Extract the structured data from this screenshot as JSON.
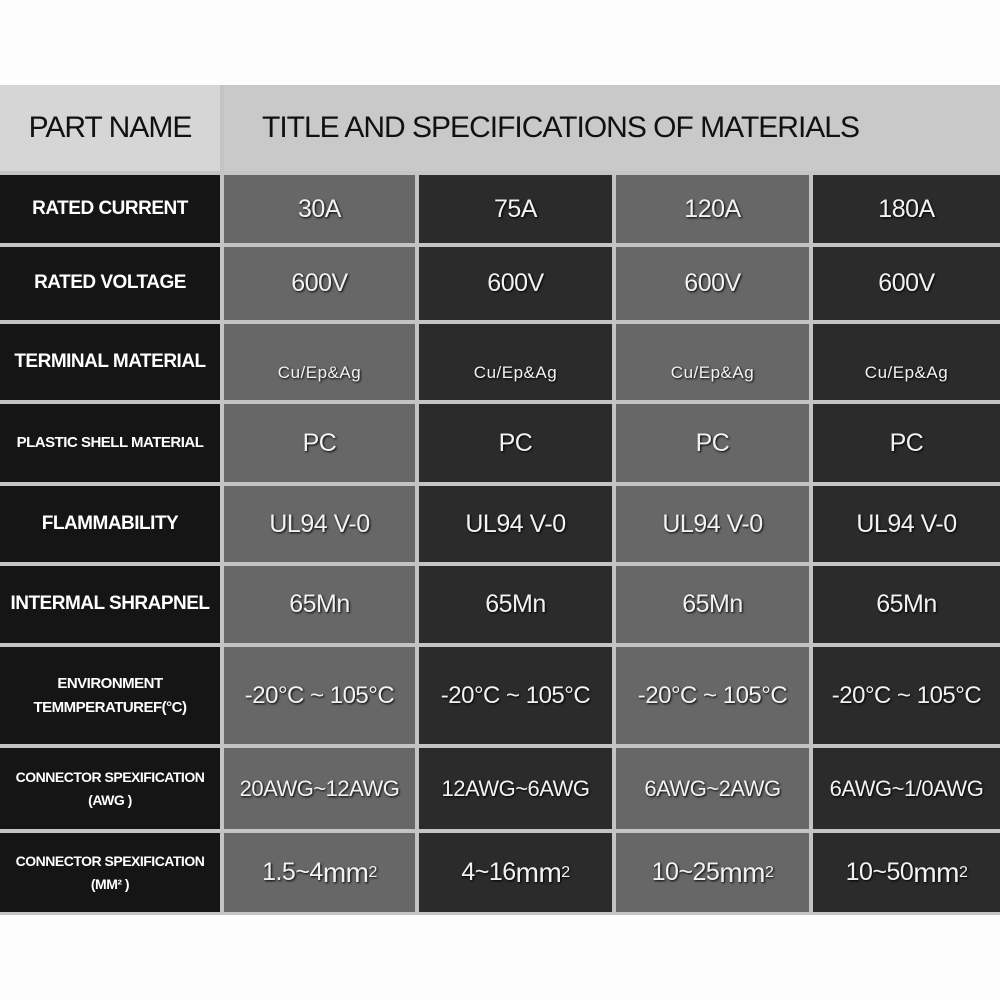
{
  "header": {
    "part_name": "PART NAME",
    "title": "TITLE AND SPECIFICATIONS OF MATERIALS"
  },
  "colors": {
    "label_bg": "#151515",
    "light_col": "#676767",
    "dark_col": "#2b2b2b",
    "header_bg": "#c9c9c9",
    "grid_line": "#c4c4c4"
  },
  "rows": [
    {
      "label": "RATED CURRENT",
      "values": [
        "30A",
        "75A",
        "120A",
        "180A"
      ]
    },
    {
      "label": "RATED VOLTAGE",
      "values": [
        "600V",
        "600V",
        "600V",
        "600V"
      ]
    },
    {
      "label": "TERMINAL MATERIAL",
      "values": [
        "Cu/Ep&Ag",
        "Cu/Ep&Ag",
        "Cu/Ep&Ag",
        "Cu/Ep&Ag"
      ]
    },
    {
      "label": "PLASTIC SHELL MATERIAL",
      "values": [
        "PC",
        "PC",
        "PC",
        "PC"
      ]
    },
    {
      "label": "FLAMMABILITY",
      "values": [
        "UL94 V-0",
        "UL94 V-0",
        "UL94 V-0",
        "UL94 V-0"
      ]
    },
    {
      "label": "INTERMAL SHRAPNEL",
      "values": [
        "65Mn",
        "65Mn",
        "65Mn",
        "65Mn"
      ]
    },
    {
      "label": "ENVIRONMENT",
      "label2": "TEMMPERATUREF(°C)",
      "values": [
        "-20°C ~ 105°C",
        "-20°C ~ 105°C",
        "-20°C ~ 105°C",
        "-20°C ~ 105°C"
      ]
    },
    {
      "label": "CONNECTOR SPEXIFICATION",
      "label2": "(AWG )",
      "values": [
        "20AWG~12AWG",
        "12AWG~6AWG",
        "6AWG~2AWG",
        "6AWG~1/0AWG"
      ]
    },
    {
      "label": "CONNECTOR SPEXIFICATION",
      "label2": "(MM² )",
      "values": [
        "1.5~4",
        "4~16",
        "10~25",
        "10~50"
      ],
      "unit": "mm",
      "unit_sup": "2"
    }
  ]
}
